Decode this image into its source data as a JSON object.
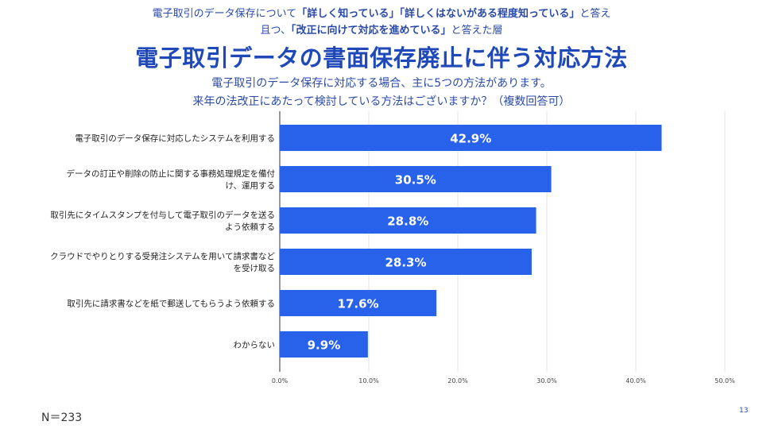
{
  "header": {
    "line1_pre": "電子取引のデータ保存について",
    "line1_bold": "「詳しく知っている」「詳しくはないがある程度知っている」",
    "line1_post": "と答え",
    "line2_pre": "且つ、",
    "line2_bold": "「改正に向けて対応を進めている」",
    "line2_post": "と答えた層",
    "title": "電子取引データの書面保存廃止に伴う対応方法",
    "subtitle1": "電子取引のデータ保存に対応する場合、主に5つの方法があります。",
    "subtitle2": "来年の法改正にあたって検討している方法はございますか？（複数回答可）"
  },
  "chart_data": {
    "type": "bar",
    "orientation": "horizontal",
    "categories": [
      [
        "電子取引のデータ保存に対応したシステムを利用する"
      ],
      [
        "データの訂正や削除の防止に関する事務処理規定を備付",
        "け、運用する"
      ],
      [
        "取引先にタイムスタンプを付与して電子取引のデータを送る",
        "よう依頼する"
      ],
      [
        "クラウドでやりとりする受発注システムを用いて請求書など",
        "を受け取る"
      ],
      [
        "取引先に請求書などを紙で郵送してもらうよう依頼する"
      ],
      [
        "わからない"
      ]
    ],
    "values": [
      42.9,
      30.5,
      28.8,
      28.3,
      17.6,
      9.9
    ],
    "data_labels": [
      "42.9%",
      "30.5%",
      "28.8%",
      "28.3%",
      "17.6%",
      "9.9%"
    ],
    "xlim": [
      0,
      50
    ],
    "x_ticks": [
      "0.0%",
      "10.0%",
      "20.0%",
      "30.0%",
      "40.0%",
      "50.0%"
    ],
    "grid": true,
    "bar_color": "#2962ea"
  },
  "footer": {
    "n": "N＝233",
    "page": "13"
  }
}
